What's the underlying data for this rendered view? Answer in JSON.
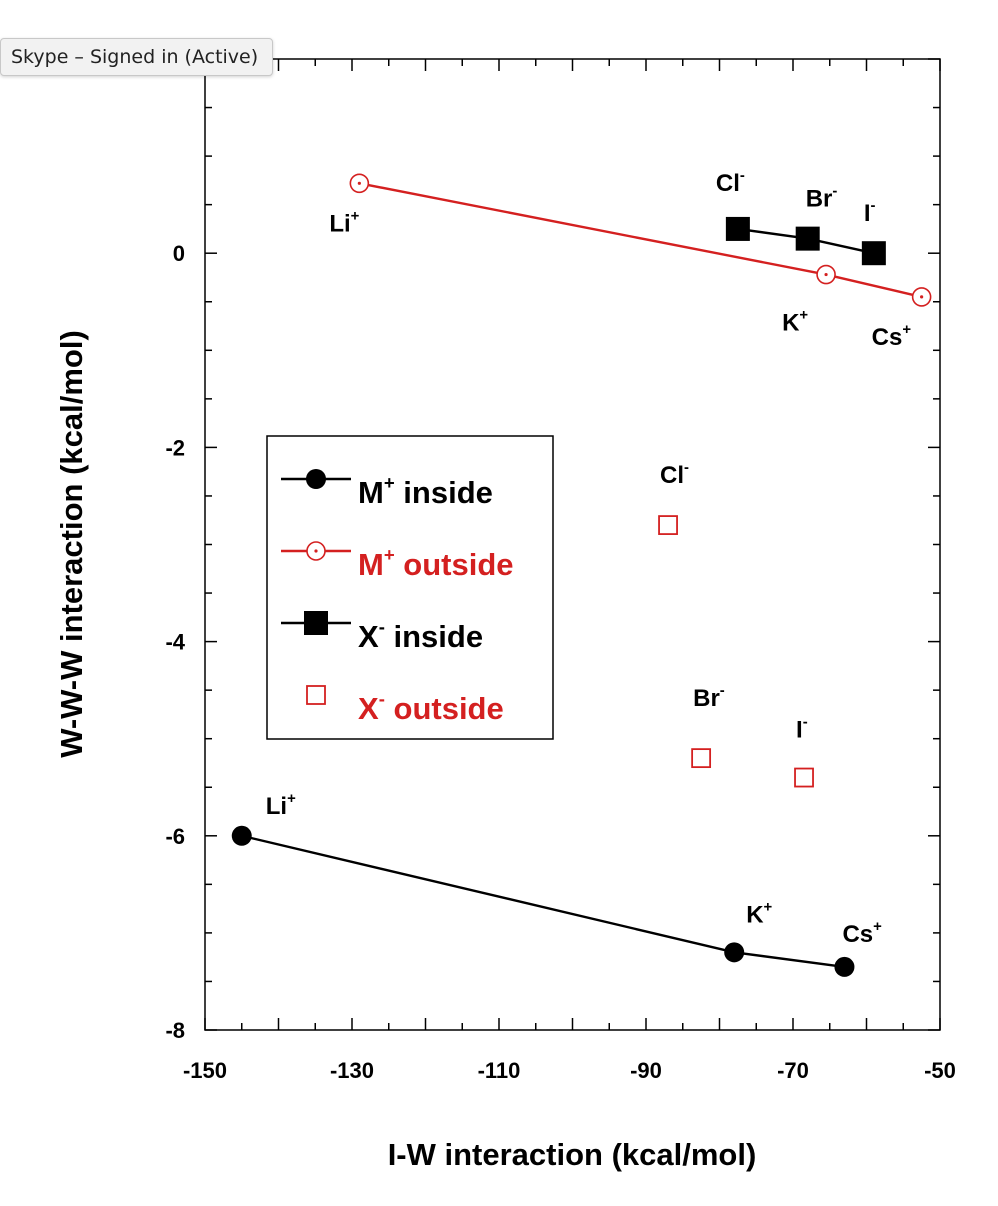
{
  "tooltip": {
    "text": "Skype – Signed in (Active)"
  },
  "chart_data": {
    "type": "scatter",
    "xlabel": "I-W interaction (kcal/mol)",
    "ylabel": "W-W-W interaction (kcal/mol)",
    "xlim": [
      -150,
      -50
    ],
    "ylim": [
      -8,
      2
    ],
    "xticks": [
      -150,
      -130,
      -110,
      -90,
      -70,
      -50
    ],
    "yticks": [
      -8,
      -6,
      -4,
      -2,
      0
    ],
    "legend_position": "left-center",
    "series": [
      {
        "name": "M",
        "name_sup": "+",
        "name_suffix": " inside",
        "color": "#000000",
        "marker": "filled-circle",
        "line": true,
        "points": [
          {
            "x": -145,
            "y": -6.0,
            "label": "Li",
            "sup": "+"
          },
          {
            "x": -78,
            "y": -7.2,
            "label": "K",
            "sup": "+"
          },
          {
            "x": -63,
            "y": -7.35,
            "label": "Cs",
            "sup": "+"
          }
        ]
      },
      {
        "name": "M",
        "name_sup": "+",
        "name_suffix": " outside",
        "color": "#d42020",
        "marker": "open-circle-dot",
        "line": true,
        "points": [
          {
            "x": -129,
            "y": 0.72,
            "label": "Li",
            "sup": "+"
          },
          {
            "x": -65.5,
            "y": -0.22,
            "label": "K",
            "sup": "+"
          },
          {
            "x": -52.5,
            "y": -0.45,
            "label": "Cs",
            "sup": "+"
          }
        ]
      },
      {
        "name": "X",
        "name_sup": "-",
        "name_suffix": " inside",
        "color": "#000000",
        "marker": "filled-square",
        "line": true,
        "points": [
          {
            "x": -77.5,
            "y": 0.25,
            "label": "Cl",
            "sup": "-"
          },
          {
            "x": -68,
            "y": 0.15,
            "label": "Br",
            "sup": "-"
          },
          {
            "x": -59,
            "y": 0.0,
            "label": "I",
            "sup": "-"
          }
        ]
      },
      {
        "name": "X",
        "name_sup": "-",
        "name_suffix": " outside",
        "color": "#d42020",
        "marker": "open-square",
        "line": false,
        "points": [
          {
            "x": -87,
            "y": -2.8,
            "label": "Cl",
            "sup": "-"
          },
          {
            "x": -82.5,
            "y": -5.2,
            "label": "Br",
            "sup": "-"
          },
          {
            "x": -68.5,
            "y": -5.4,
            "label": "I",
            "sup": "-"
          }
        ]
      }
    ]
  }
}
